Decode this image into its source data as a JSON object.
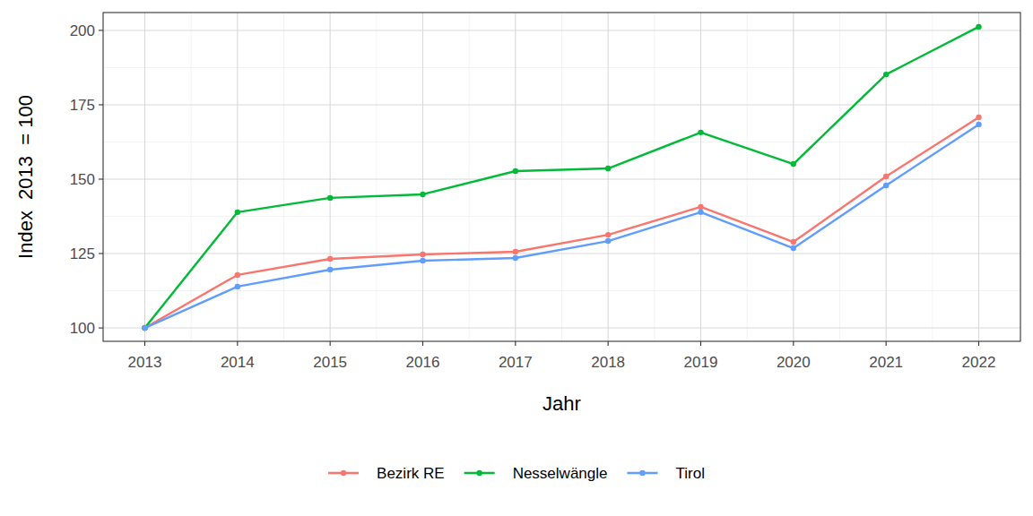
{
  "chart_data": {
    "type": "line",
    "x_label": "Jahr",
    "y_label": "Index  2013  = 100",
    "x": [
      2013,
      2014,
      2015,
      2016,
      2017,
      2018,
      2019,
      2020,
      2021,
      2022
    ],
    "series": [
      {
        "name": "Bezirk RE",
        "color": "#F8766D",
        "values": [
          100,
          117.8,
          123.2,
          124.7,
          125.6,
          131.3,
          140.7,
          128.9,
          150.9,
          170.8
        ]
      },
      {
        "name": "Nesselwängle",
        "color": "#00BA38",
        "values": [
          100,
          138.9,
          143.7,
          144.9,
          152.7,
          153.6,
          165.7,
          155.1,
          185.2,
          201.2
        ]
      },
      {
        "name": "Tirol",
        "color": "#619CFF",
        "values": [
          100,
          113.9,
          119.6,
          122.6,
          123.5,
          129.2,
          138.9,
          126.8,
          147.9,
          168.4
        ]
      }
    ],
    "xlim": [
      2012.55,
      2022.45
    ],
    "xticks": [
      2013,
      2014,
      2015,
      2016,
      2017,
      2018,
      2019,
      2020,
      2021,
      2022
    ],
    "ylim": [
      95.5,
      206
    ],
    "yticks": [
      100,
      125,
      150,
      175,
      200
    ],
    "grid": true,
    "legend": "bottom",
    "marker": "circle",
    "line_style": "solid"
  }
}
